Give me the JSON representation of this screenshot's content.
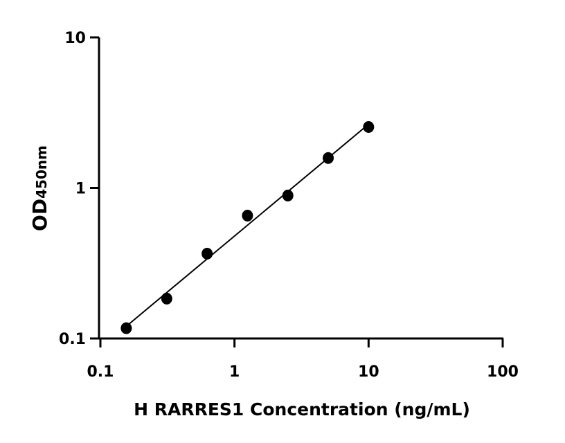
{
  "chart_data": {
    "type": "scatter",
    "title": "",
    "xlabel": "H RARRES1 Concentration (ng/mL)",
    "ylabel_main": "OD",
    "ylabel_sub": "450nm",
    "xscale": "log",
    "yscale": "log",
    "xlim": [
      0.1,
      100
    ],
    "ylim": [
      0.1,
      10
    ],
    "x_ticks": [
      "0.1",
      "1",
      "10",
      "100"
    ],
    "y_ticks": [
      "0.1",
      "1",
      "10"
    ],
    "grid": false,
    "points": [
      {
        "x": 0.156,
        "y": 0.117
      },
      {
        "x": 0.3125,
        "y": 0.184
      },
      {
        "x": 0.625,
        "y": 0.366
      },
      {
        "x": 1.25,
        "y": 0.655
      },
      {
        "x": 2.5,
        "y": 0.89
      },
      {
        "x": 5,
        "y": 1.58
      },
      {
        "x": 10,
        "y": 2.54
      }
    ],
    "fit": "log-log linear regression line",
    "colors": {
      "marker": "#000000",
      "line": "#000000"
    }
  }
}
